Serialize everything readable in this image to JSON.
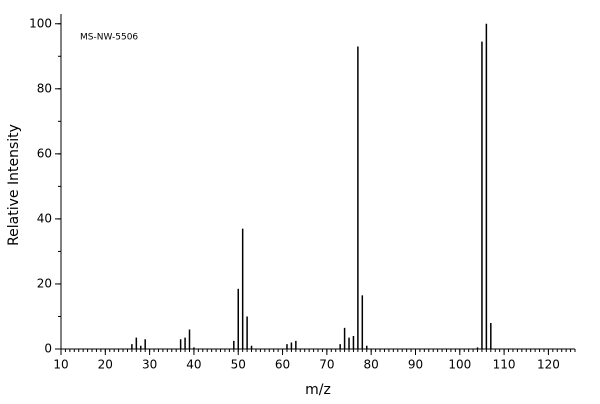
{
  "chart_data": {
    "type": "bar",
    "annotation": "MS-NW-5506",
    "xlabel": "m/z",
    "ylabel": "Relative Intensity",
    "x": [
      26,
      27,
      28,
      29,
      37,
      38,
      39,
      40,
      49,
      50,
      51,
      52,
      53,
      61,
      62,
      63,
      73,
      74,
      75,
      76,
      77,
      78,
      79,
      104,
      105,
      106,
      107
    ],
    "values": [
      1.5,
      3.5,
      1,
      3,
      3,
      3.5,
      6,
      0.5,
      2.5,
      18.5,
      37,
      10,
      1,
      1.5,
      2,
      2.5,
      1.5,
      6.5,
      3.5,
      4,
      93,
      16.5,
      1,
      0.5,
      94.5,
      100,
      8
    ],
    "color": "#000000",
    "xlim": [
      10,
      126
    ],
    "ylim": [
      0,
      103
    ],
    "xticks": [
      10,
      20,
      30,
      40,
      50,
      60,
      70,
      80,
      90,
      100,
      110,
      120
    ],
    "yticks": [
      0,
      20,
      40,
      60,
      80,
      100
    ],
    "xminor_step": 1,
    "yminor_step": 10
  }
}
